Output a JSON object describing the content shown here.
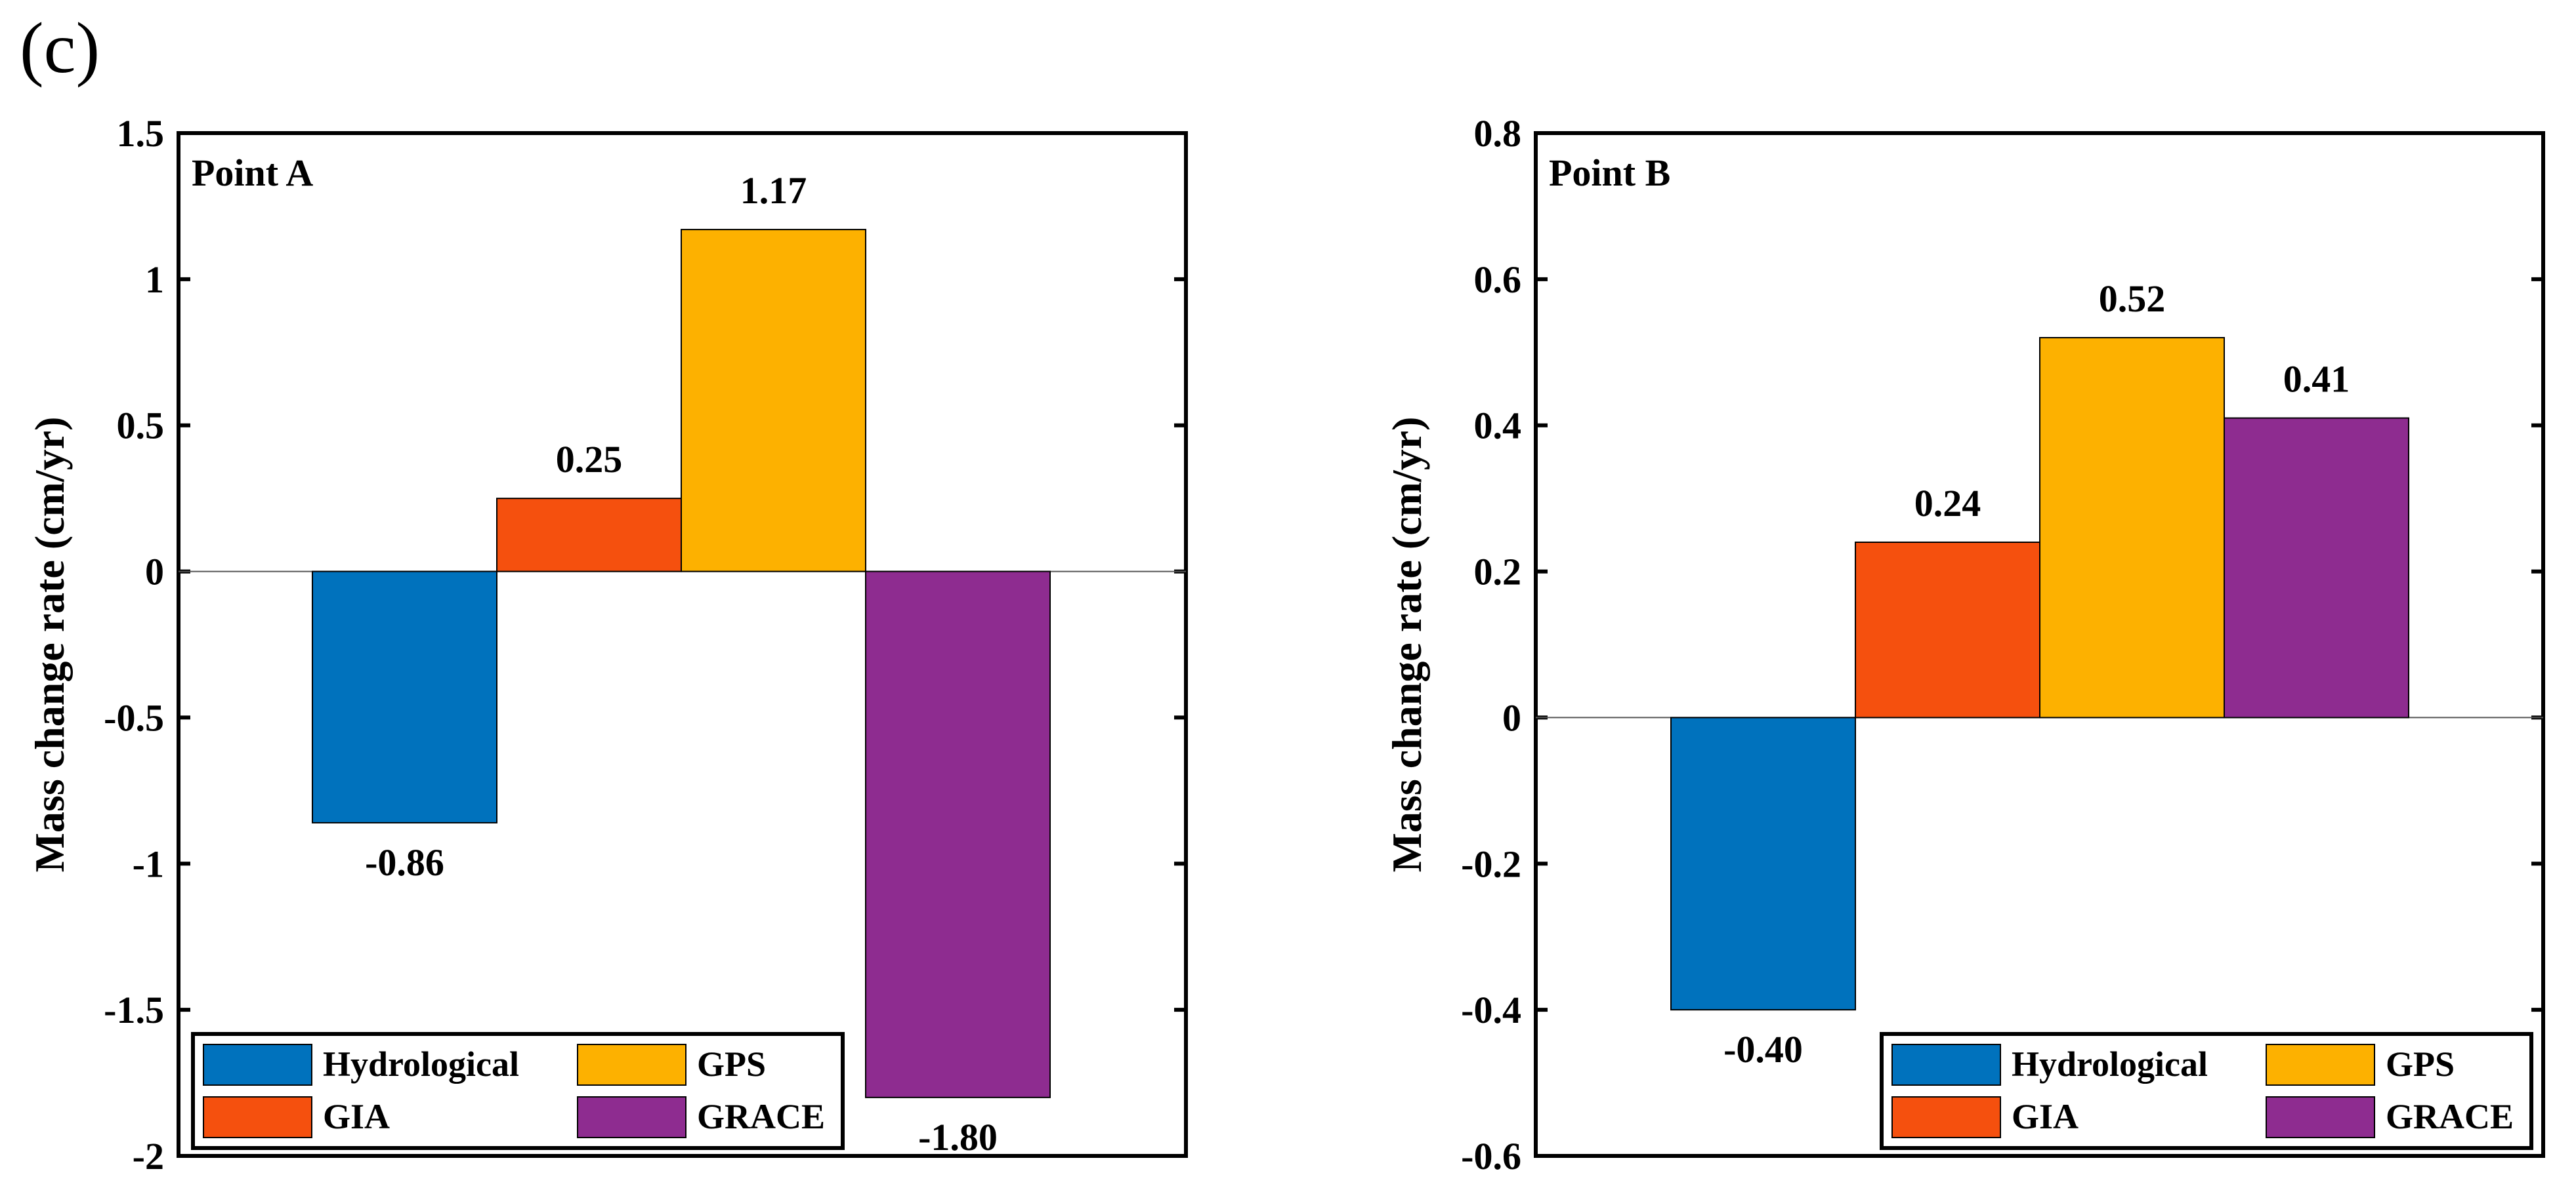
{
  "panel_label": "(c)",
  "chart_data": [
    {
      "type": "bar",
      "title": "Point A",
      "xlabel": "",
      "ylabel": "Mass change rate (cm/yr)",
      "ylim": [
        -2,
        1.5
      ],
      "yticks": [
        -2,
        -1.5,
        -1,
        -0.5,
        0,
        0.5,
        1,
        1.5
      ],
      "ytick_labels": [
        "-2",
        "-1.5",
        "-1",
        "-0.5",
        "0",
        "0.5",
        "1",
        "1.5"
      ],
      "categories": [
        "Hydrological",
        "GIA",
        "GPS",
        "GRACE"
      ],
      "values": [
        -0.86,
        0.25,
        1.17,
        -1.8
      ],
      "value_labels": [
        "-0.86",
        "0.25",
        "1.17",
        "-1.80"
      ],
      "colors": [
        "#0072BD",
        "#F5500E",
        "#FDB100",
        "#8E2C90"
      ],
      "legend_placement": "bottom-left"
    },
    {
      "type": "bar",
      "title": "Point B",
      "xlabel": "",
      "ylabel": "Mass change rate (cm/yr)",
      "ylim": [
        -0.6,
        0.8
      ],
      "yticks": [
        -0.6,
        -0.4,
        -0.2,
        0,
        0.2,
        0.4,
        0.6,
        0.8
      ],
      "ytick_labels": [
        "-0.6",
        "-0.4",
        "-0.2",
        "0",
        "0.2",
        "0.4",
        "0.6",
        "0.8"
      ],
      "categories": [
        "Hydrological",
        "GIA",
        "GPS",
        "GRACE"
      ],
      "values": [
        -0.4,
        0.24,
        0.52,
        0.41
      ],
      "value_labels": [
        "-0.40",
        "0.24",
        "0.52",
        "0.41"
      ],
      "colors": [
        "#0072BD",
        "#F5500E",
        "#FDB100",
        "#8E2C90"
      ],
      "legend_placement": "bottom-right"
    }
  ]
}
